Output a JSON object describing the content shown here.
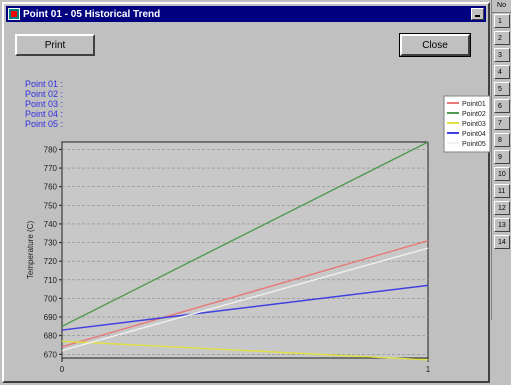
{
  "window": {
    "title": "Point 01 - 05 Historical Trend"
  },
  "buttons": {
    "print_label": "Print",
    "close_label": "Close"
  },
  "point_labels": [
    "Point 01 :",
    "Point 02 :",
    "Point 03 :",
    "Point 04 :",
    "Point 05 :"
  ],
  "side_panel": {
    "header": "No",
    "items": [
      "1",
      "2",
      "3",
      "4",
      "5",
      "6",
      "7",
      "8",
      "9",
      "10",
      "11",
      "12",
      "13",
      "14"
    ]
  },
  "chart_data": {
    "type": "line",
    "ylabel": "Temperature (C)",
    "xlabel": "",
    "ylim": [
      668,
      784
    ],
    "xlim": [
      0,
      1
    ],
    "y_ticks": [
      670,
      680,
      690,
      700,
      710,
      720,
      730,
      740,
      750,
      760,
      770,
      780
    ],
    "y_tick_labels": [
      "670",
      "680",
      "690",
      "700",
      "710",
      "720",
      "730",
      "740",
      "750",
      "760",
      "770",
      "780"
    ],
    "x_ticks": [
      0,
      1
    ],
    "x_tick_labels": [
      "0",
      "1"
    ],
    "grid": true,
    "legend_position": "top-right, outside plot",
    "series": [
      {
        "name": "Point01",
        "color": "#e87878",
        "x": [
          0,
          1
        ],
        "y": [
          674,
          731
        ]
      },
      {
        "name": "Point02",
        "color": "#4f9a4f",
        "x": [
          0,
          1
        ],
        "y": [
          685,
          784
        ]
      },
      {
        "name": "Point03",
        "color": "#e0e040",
        "x": [
          0,
          1
        ],
        "y": [
          677,
          667
        ]
      },
      {
        "name": "Point04",
        "color": "#4040e0",
        "x": [
          0,
          1
        ],
        "y": [
          683,
          707
        ]
      },
      {
        "name": "Point05",
        "color": "#f0f0f0",
        "x": [
          0,
          1
        ],
        "y": [
          672,
          727
        ]
      }
    ]
  }
}
